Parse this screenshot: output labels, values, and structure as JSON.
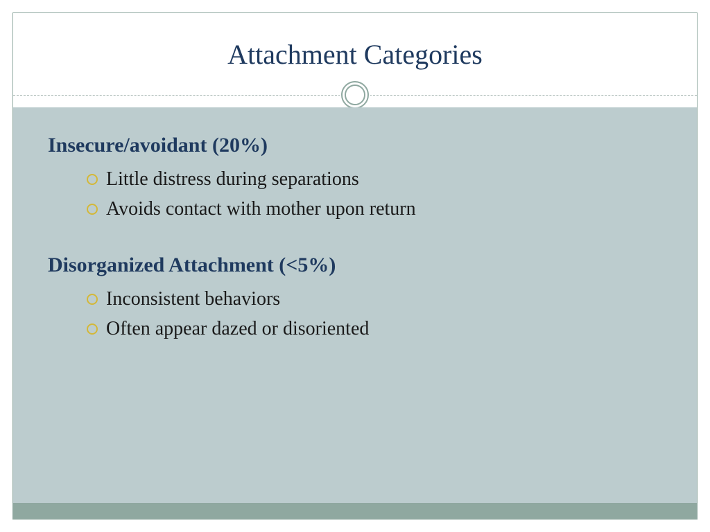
{
  "slide": {
    "title": "Attachment Categories",
    "title_color": "#1f3a5f",
    "title_fontsize": 40,
    "border_color": "#8fa8a0",
    "body_background": "#bcccce",
    "footer_color": "#8fa8a0",
    "bullet_ring_color": "#d4b838",
    "sections": [
      {
        "heading": "Insecure/avoidant (20%)",
        "heading_color": "#1f3a5f",
        "heading_fontsize": 30,
        "bullets": [
          "Little distress during separations",
          "Avoids contact with mother upon return"
        ]
      },
      {
        "heading": "Disorganized Attachment (<5%)",
        "heading_color": "#1f3a5f",
        "heading_fontsize": 30,
        "bullets": [
          "Inconsistent behaviors",
          "Often appear dazed or disoriented"
        ]
      }
    ],
    "bullet_text_color": "#1a1a1a",
    "bullet_fontsize": 28
  }
}
